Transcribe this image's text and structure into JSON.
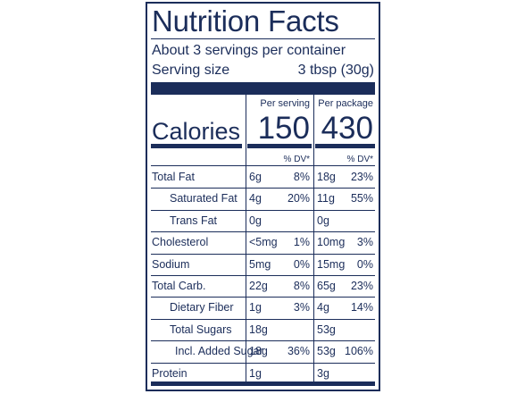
{
  "title": "Nutrition Facts",
  "servings_per_container": "About 3 servings per container",
  "serving_size_label": "Serving size",
  "serving_size_value": "3 tbsp (30g)",
  "per_serving_header": "Per serving",
  "per_package_header": "Per package",
  "calories_label": "Calories",
  "calories_per_serving": "150",
  "calories_per_package": "430",
  "dv_header": "% DV*",
  "rows": [
    {
      "label": "Total Fat",
      "amt1": "6g",
      "dv1": "8%",
      "amt2": "18g",
      "dv2": "23%"
    },
    {
      "label": "Saturated Fat",
      "amt1": "4g",
      "dv1": "20%",
      "amt2": "11g",
      "dv2": "55%"
    },
    {
      "label": "Trans Fat",
      "amt1": "0g",
      "dv1": "",
      "amt2": "0g",
      "dv2": ""
    },
    {
      "label": "Cholesterol",
      "amt1": "<5mg",
      "dv1": "1%",
      "amt2": "10mg",
      "dv2": "3%"
    },
    {
      "label": "Sodium",
      "amt1": "5mg",
      "dv1": "0%",
      "amt2": "15mg",
      "dv2": "0%"
    },
    {
      "label": "Total Carb.",
      "amt1": "22g",
      "dv1": "8%",
      "amt2": "65g",
      "dv2": "23%"
    },
    {
      "label": "Dietary Fiber",
      "amt1": "1g",
      "dv1": "3%",
      "amt2": "4g",
      "dv2": "14%"
    },
    {
      "label": "Total Sugars",
      "amt1": "18g",
      "dv1": "",
      "amt2": "53g",
      "dv2": ""
    },
    {
      "label": "Incl. Added Sugar",
      "amt1": "18g",
      "dv1": "36%",
      "amt2": "53g",
      "dv2": "106%"
    },
    {
      "label": "Protein",
      "amt1": "1g",
      "dv1": "",
      "amt2": "3g",
      "dv2": ""
    }
  ],
  "colors": {
    "ink": "#1b2d5a",
    "background": "#ffffff"
  }
}
